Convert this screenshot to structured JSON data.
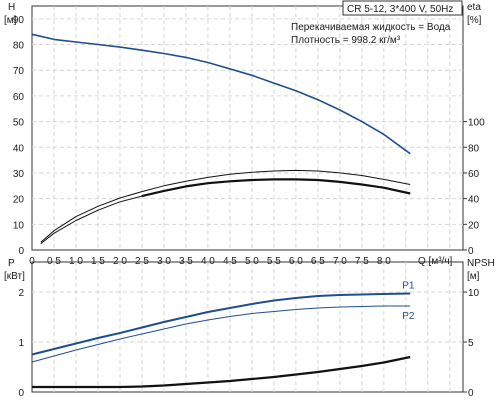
{
  "chart_data": [
    {
      "type": "line",
      "title": "CR 5-12, 3*400 V, 50Hz",
      "info_lines": [
        "Перекачиваемая жидкость = Вода",
        "Плотность = 998.2 кг/м³"
      ],
      "xlabel": "Q [м³/ч]",
      "xlim": [
        0,
        9.8
      ],
      "x_ticks": [
        "0",
        "0.5",
        "1.0",
        "1.5",
        "2.0",
        "2.5",
        "3.0",
        "3.5",
        "4.0",
        "4.5",
        "5.0",
        "5.5",
        "6.0",
        "6.5",
        "7.0",
        "7.5",
        "8.0"
      ],
      "y_left": {
        "label": "H",
        "unit": "[м]",
        "lim": [
          0,
          95
        ],
        "ticks": [
          "0",
          "10",
          "20",
          "30",
          "40",
          "50",
          "60",
          "70",
          "80",
          "90"
        ]
      },
      "y_right": {
        "label": "eta",
        "unit": "[%]",
        "lim": [
          0,
          190
        ],
        "ticks": [
          "0",
          "20",
          "40",
          "60",
          "80",
          "100"
        ]
      },
      "grid": true,
      "series": [
        {
          "axis": "left",
          "color": "#1f4e8c",
          "x": [
            0,
            0.5,
            1.0,
            1.5,
            2.0,
            2.5,
            3.0,
            3.5,
            4.0,
            4.5,
            5.0,
            5.5,
            6.0,
            6.5,
            7.0,
            7.5,
            8.0,
            8.6
          ],
          "y": [
            84,
            82,
            81,
            80,
            79,
            77.8,
            76.5,
            75,
            73,
            70.5,
            68,
            65,
            62,
            58.5,
            54.5,
            50,
            45,
            37.5
          ]
        },
        {
          "axis": "right",
          "color": "#111111",
          "x": [
            0.2,
            0.5,
            1.0,
            1.5,
            2.0,
            2.5,
            3.0,
            3.5,
            4.0,
            4.5,
            5.0,
            5.5,
            6.0,
            6.5,
            7.0,
            7.5,
            8.0,
            8.6
          ],
          "y": [
            6,
            15,
            26,
            34,
            40.5,
            45.5,
            50,
            53.5,
            56.5,
            59,
            60.5,
            61.5,
            62,
            61.5,
            60,
            58,
            55,
            51
          ]
        },
        {
          "axis": "right",
          "color": "#111111",
          "x": [
            0.2,
            0.5,
            1.0,
            1.5,
            2.0,
            2.5,
            3.0,
            3.5,
            4.0,
            4.5,
            5.0,
            5.5,
            6.0,
            6.5,
            7.0,
            7.5,
            8.0,
            8.6
          ],
          "y": [
            5,
            13,
            23,
            31,
            37.5,
            42,
            46,
            49.5,
            52,
            53.5,
            54.5,
            55,
            55,
            54.5,
            53,
            51,
            48.5,
            44
          ]
        },
        {
          "axis": "right",
          "color": "#111111",
          "x": [
            2.5,
            3.0,
            3.5,
            4.0,
            4.5,
            5.0,
            5.5,
            6.0,
            6.5,
            7.0,
            7.5,
            8.0,
            8.6
          ],
          "y": [
            42,
            46,
            49.5,
            52,
            53.5,
            54.5,
            55,
            55,
            54.5,
            53,
            51,
            48.5,
            44
          ]
        }
      ]
    },
    {
      "type": "line",
      "xlim": [
        0,
        9.8
      ],
      "y_left": {
        "label": "P",
        "unit": "[кВт]",
        "lim": [
          0,
          2.6
        ],
        "ticks": [
          "0",
          "1",
          "2"
        ]
      },
      "y_right": {
        "label": "NPSH",
        "unit": "[м]",
        "lim": [
          0,
          13
        ],
        "ticks": [
          "0",
          "5",
          "10"
        ]
      },
      "grid": true,
      "series": [
        {
          "name": "P1",
          "axis": "left",
          "color": "#1f4e8c",
          "x": [
            0,
            0.5,
            1.0,
            1.5,
            2.0,
            2.5,
            3.0,
            3.5,
            4.0,
            4.5,
            5.0,
            5.5,
            6.0,
            6.5,
            7.0,
            7.5,
            8.0,
            8.6
          ],
          "y": [
            0.75,
            0.86,
            0.97,
            1.08,
            1.18,
            1.29,
            1.4,
            1.5,
            1.6,
            1.68,
            1.76,
            1.83,
            1.88,
            1.92,
            1.94,
            1.95,
            1.96,
            1.97
          ]
        },
        {
          "name": "P2",
          "axis": "left",
          "color": "#1f4e8c",
          "x": [
            0,
            0.5,
            1.0,
            1.5,
            2.0,
            2.5,
            3.0,
            3.5,
            4.0,
            4.5,
            5.0,
            5.5,
            6.0,
            6.5,
            7.0,
            7.5,
            8.0,
            8.6
          ],
          "y": [
            0.6,
            0.72,
            0.84,
            0.95,
            1.06,
            1.16,
            1.26,
            1.36,
            1.44,
            1.51,
            1.57,
            1.61,
            1.65,
            1.68,
            1.7,
            1.71,
            1.72,
            1.72
          ]
        },
        {
          "axis": "right",
          "color": "#111111",
          "x": [
            0,
            0.5,
            1.0,
            1.5,
            2.0,
            2.5,
            3.0,
            3.5,
            4.0,
            4.5,
            5.0,
            5.5,
            6.0,
            6.5,
            7.0,
            7.5,
            8.0,
            8.6
          ],
          "y": [
            0.5,
            0.5,
            0.5,
            0.5,
            0.5,
            0.55,
            0.65,
            0.8,
            0.95,
            1.1,
            1.3,
            1.5,
            1.75,
            2.0,
            2.3,
            2.6,
            2.95,
            3.5
          ]
        }
      ]
    }
  ]
}
